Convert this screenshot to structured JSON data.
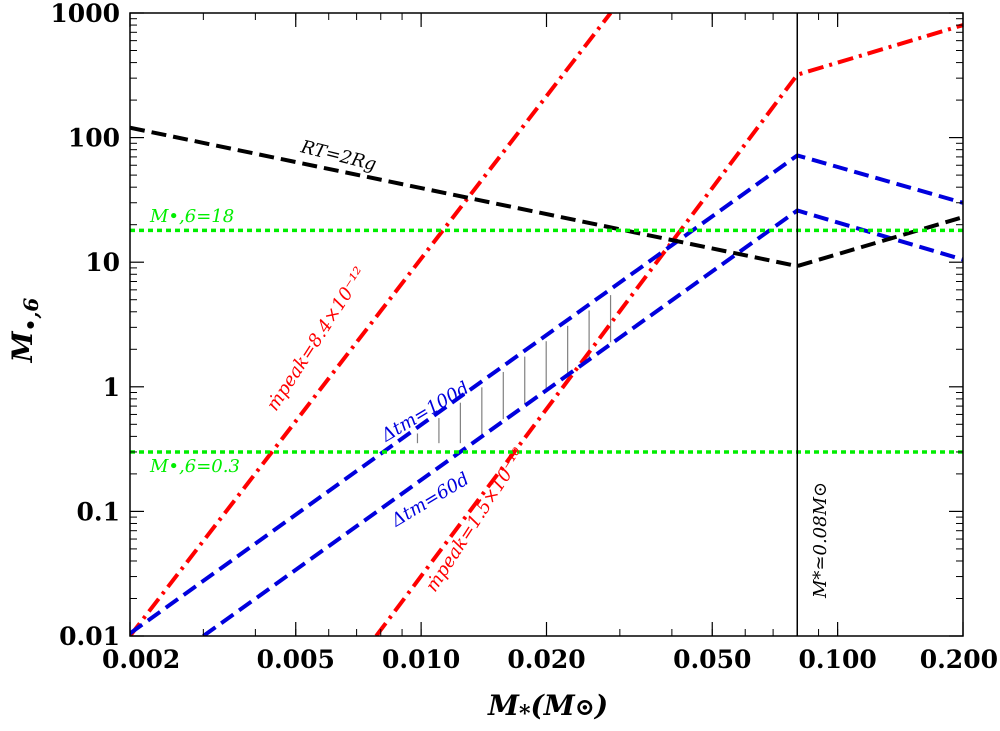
{
  "chart_data": {
    "type": "line",
    "x_scale": "log",
    "y_scale": "log",
    "xlim": [
      0.002,
      0.2
    ],
    "ylim": [
      0.01,
      1000
    ],
    "grid": false,
    "xlabel": "M*(M⊙)",
    "ylabel": "M•,6",
    "x_ticks": [
      "0.002",
      "0.005",
      "0.010",
      "0.020",
      "0.050",
      "0.100",
      "0.200"
    ],
    "x_tick_values": [
      0.002,
      0.005,
      0.01,
      0.02,
      0.05,
      0.1,
      0.2
    ],
    "y_ticks": [
      "0.01",
      "0.1",
      "1",
      "10",
      "100",
      "1000"
    ],
    "y_tick_values": [
      0.01,
      0.1,
      1,
      10,
      100,
      1000
    ],
    "colors": {
      "red": "#ff0000",
      "blue": "#0000dd",
      "black": "#000000",
      "green": "#00ee00",
      "gray": "#808080"
    },
    "series": [
      {
        "label": "ṁpeak=8.4×10⁻¹²",
        "color": "#ff0000",
        "style": "dashdot",
        "x": [
          0.002,
          0.0285
        ],
        "y": [
          0.01,
          1000
        ]
      },
      {
        "label": "ṁpeak=1.5×10⁻¹⁰",
        "color": "#ff0000",
        "style": "dashdot",
        "x": [
          0.0078,
          0.08,
          0.2
        ],
        "y": [
          0.01,
          320,
          800
        ]
      },
      {
        "label": "Δtm=100d",
        "color": "#0000dd",
        "style": "dashed",
        "x": [
          0.002,
          0.08,
          0.2
        ],
        "y": [
          0.0105,
          72,
          30
        ]
      },
      {
        "label": "Δtm=60d",
        "color": "#0000dd",
        "style": "dashed",
        "x": [
          0.003,
          0.08,
          0.2
        ],
        "y": [
          0.01,
          26,
          10.5
        ]
      },
      {
        "label": "RT=2Rg",
        "color": "#000000",
        "style": "dashed",
        "x": [
          0.002,
          0.08,
          0.2
        ],
        "y": [
          120,
          9.3,
          23
        ]
      },
      {
        "label": "M•,6=18",
        "color": "#00ee00",
        "style": "dotted",
        "x": [
          0.002,
          0.2
        ],
        "y": [
          18,
          18
        ]
      },
      {
        "label": "M•,6=0.3",
        "color": "#00ee00",
        "style": "dotted",
        "x": [
          0.002,
          0.2
        ],
        "y": [
          0.3,
          0.3
        ]
      }
    ],
    "vertical_line": {
      "x": 0.08,
      "label": "M*≃0.08M⊙"
    },
    "hatch": {
      "x_start": 0.0098,
      "x_end": 0.0285,
      "count": 10
    },
    "annotations": {
      "rt": "RT=2Rg",
      "m18": "M•,6=18",
      "m03": "M•,6=0.3",
      "mdot1": "ṁpeak=8.4×10⁻¹²",
      "mdot2": "ṁpeak=1.5×10⁻¹⁰",
      "dt100": "Δtm=100d",
      "dt60": "Δtm=60d",
      "mstar": "M*≃0.08M⊙"
    }
  }
}
